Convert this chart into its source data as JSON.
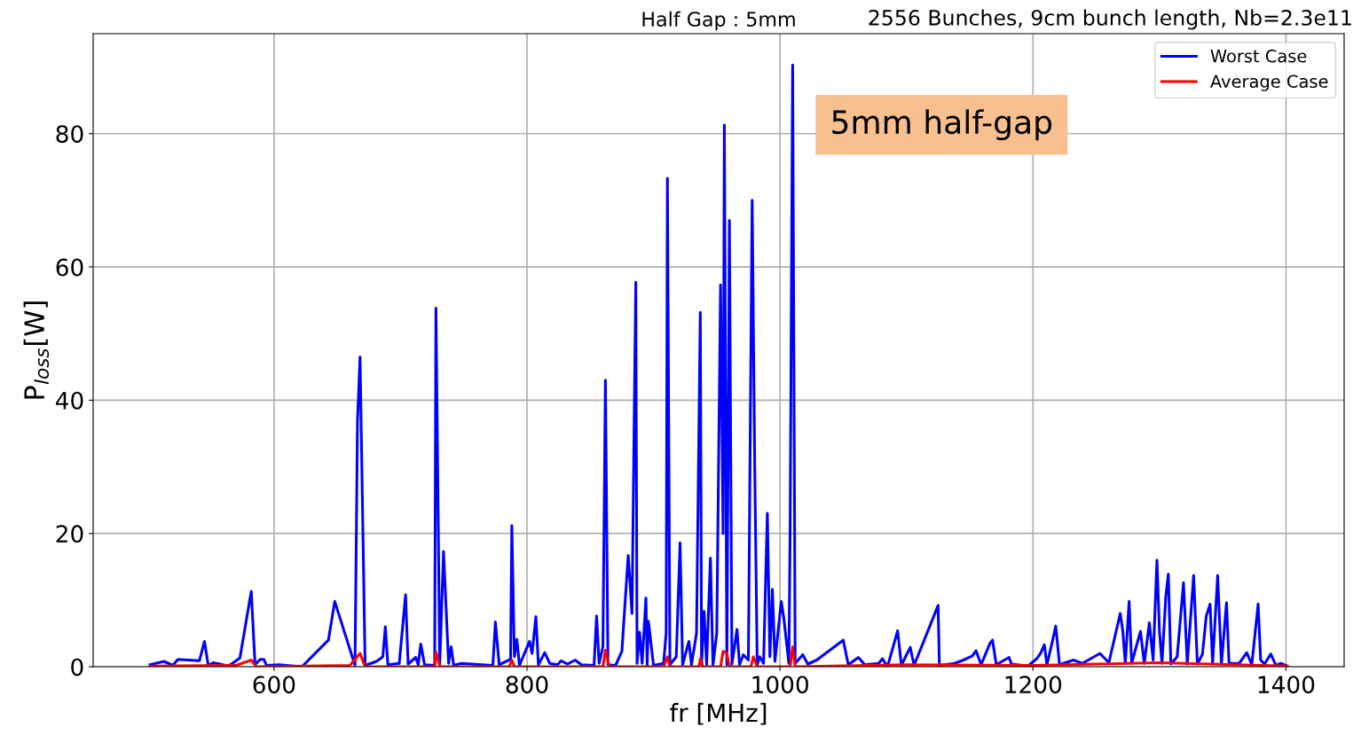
{
  "chart_data": {
    "type": "line",
    "title": "Half Gap : 5mm",
    "subtitle": "2556 Bunches, 9cm bunch length, Nb=2.3e11",
    "xlabel": "fr [MHz]",
    "ylabel": "P$_{loss}$[W]",
    "annotations": [
      "5mm half-gap"
    ],
    "xlim": [
      457,
      1446
    ],
    "ylim": [
      0,
      95
    ],
    "xticks": [
      600,
      800,
      1000,
      1200,
      1400
    ],
    "yticks": [
      0,
      20,
      40,
      60,
      80
    ],
    "grid": true,
    "legend": "top right",
    "marker": "none",
    "line_style": "solid",
    "series": [
      {
        "name": "Worst Case",
        "color": "#0000ff",
        "x": [
          502,
          513,
          520,
          524,
          541,
          545,
          548,
          552,
          564,
          573,
          582,
          585,
          589,
          592,
          594,
          604,
          622,
          643,
          648,
          664,
          666,
          668,
          672,
          681,
          686,
          688,
          690,
          699,
          704,
          706,
          712,
          714,
          716,
          719,
          727,
          728,
          731,
          734,
          738,
          740,
          742,
          748,
          773,
          775,
          778,
          787,
          788,
          790,
          792,
          794,
          802,
          804,
          807,
          809,
          814,
          818,
          824,
          827,
          832,
          838,
          843,
          853,
          855,
          857,
          860,
          862,
          864,
          870,
          875,
          880,
          883,
          886,
          887,
          889,
          891,
          894,
          895,
          896,
          900,
          908,
          910,
          911,
          913,
          918,
          921,
          923,
          928,
          930,
          934,
          937,
          938,
          940,
          942,
          945,
          947,
          950,
          953,
          955,
          956,
          958,
          960,
          962,
          966,
          968,
          971,
          975,
          978,
          980,
          982,
          984,
          987,
          990,
          992,
          994,
          996,
          1001,
          1003,
          1007,
          1008,
          1010,
          1012,
          1018,
          1022,
          1029,
          1050,
          1054,
          1062,
          1067,
          1078,
          1081,
          1085,
          1093,
          1096,
          1100,
          1103,
          1106,
          1125,
          1126,
          1138,
          1145,
          1152,
          1155,
          1159,
          1166,
          1168,
          1171,
          1181,
          1183,
          1196,
          1203,
          1206,
          1209,
          1211,
          1215,
          1218,
          1221,
          1232,
          1239,
          1253,
          1260,
          1269,
          1271,
          1273,
          1276,
          1278,
          1285,
          1288,
          1292,
          1295,
          1298,
          1300,
          1302,
          1305,
          1307,
          1309,
          1314,
          1319,
          1322,
          1327,
          1330,
          1334,
          1337,
          1340,
          1342,
          1346,
          1349,
          1353,
          1355,
          1363,
          1369,
          1373,
          1378,
          1380,
          1383,
          1388,
          1392,
          1396,
          1401
        ],
        "values": [
          0.3,
          0.8,
          0.2,
          1.1,
          0.9,
          3.8,
          0.2,
          0.6,
          0.1,
          1.3,
          11.3,
          0.3,
          1.1,
          1.1,
          0.2,
          0.3,
          0,
          4.0,
          9.8,
          0.2,
          37,
          46.5,
          0.2,
          0.8,
          1.5,
          6.0,
          0.3,
          0.5,
          10.8,
          0.4,
          1.4,
          0.3,
          3.4,
          0.3,
          0.2,
          53.8,
          0.3,
          17.3,
          0.5,
          3.0,
          0.2,
          0.5,
          0.2,
          6.7,
          0.3,
          1.1,
          21.2,
          1.5,
          4.1,
          0.2,
          3.8,
          2.0,
          7.5,
          0.3,
          2.1,
          0.5,
          0.3,
          0.9,
          0.4,
          1.0,
          0.3,
          0.2,
          7.6,
          0.5,
          3.0,
          43,
          0.3,
          0.2,
          2.3,
          16.7,
          8.0,
          57.7,
          0.5,
          5.2,
          0.5,
          10.3,
          0.2,
          6.8,
          0.2,
          0.5,
          5,
          73.3,
          0.3,
          1.5,
          18.6,
          0.3,
          3.8,
          0.3,
          5,
          53.2,
          0.4,
          8.3,
          0.3,
          16.3,
          0.2,
          5,
          57.3,
          20,
          81.3,
          0.3,
          67,
          0.4,
          5.6,
          0.3,
          1.8,
          1.0,
          70,
          30.5,
          0.3,
          1.5,
          0.5,
          23,
          1.5,
          11.6,
          0.8,
          9.8,
          7.3,
          0.5,
          20,
          90.3,
          0.5,
          1.8,
          0.4,
          1.0,
          4.0,
          0.3,
          1.4,
          0.3,
          0.5,
          1.2,
          0,
          5.4,
          0.2,
          1.8,
          2.9,
          0.2,
          9.2,
          0.2,
          0.5,
          1.0,
          1.6,
          2.4,
          0.3,
          3.5,
          4.0,
          0.3,
          1.4,
          0.4,
          0.1,
          1.2,
          2.0,
          3.3,
          0.3,
          3.5,
          6.1,
          0.3,
          1.0,
          0.5,
          2.0,
          0.6,
          8.0,
          5.4,
          0.5,
          9.8,
          0.5,
          5.3,
          0.5,
          6.6,
          1.0,
          16.0,
          5.3,
          0.5,
          10.5,
          13.9,
          0.4,
          1.5,
          12.6,
          0.4,
          13.7,
          0.4,
          1.9,
          7.6,
          9.4,
          0.4,
          13.7,
          0.4,
          9.6,
          0.5,
          0.5,
          2.1,
          0.3,
          9.4,
          1.0,
          0.4,
          1.9,
          0.2,
          0.5,
          0.1
        ]
      },
      {
        "name": "Average Case",
        "color": "#ff0000",
        "x": [
          502,
          570,
          582,
          586,
          660,
          668,
          672,
          727,
          728,
          731,
          786,
          788,
          790,
          860,
          862,
          865,
          908,
          911,
          913,
          936,
          937,
          939,
          953,
          955,
          958,
          960,
          977,
          979,
          982,
          1008,
          1010,
          1012,
          1100,
          1200,
          1300,
          1320,
          1401
        ],
        "values": [
          0.1,
          0.2,
          1.0,
          0,
          0.2,
          2.0,
          0,
          0,
          2.2,
          0,
          0,
          1.0,
          0,
          0,
          2.5,
          0,
          0,
          1.5,
          0,
          0,
          1.2,
          0,
          0,
          2.3,
          2.0,
          0,
          0,
          1.5,
          0,
          0,
          3.0,
          0,
          0.3,
          0.2,
          0.6,
          0.5,
          0.1
        ]
      }
    ]
  }
}
